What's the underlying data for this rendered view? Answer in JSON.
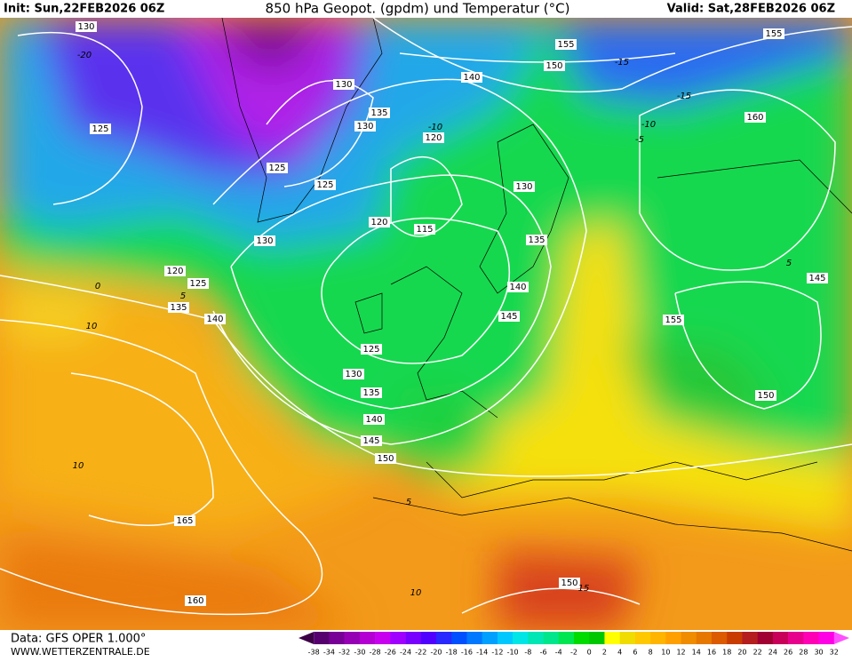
{
  "header": {
    "init": "Init: Sun,22FEB2026 06Z",
    "title": "850 hPa Geopot. (gpdm) und Temperatur (°C)",
    "valid": "Valid: Sat,28FEB2026 06Z"
  },
  "map": {
    "geopotential_labels": [
      "130",
      "125",
      "130",
      "135",
      "130",
      "125",
      "125",
      "120",
      "140",
      "155",
      "150",
      "155",
      "160",
      "130",
      "120",
      "115",
      "135",
      "130",
      "120",
      "125",
      "135",
      "140",
      "140",
      "145",
      "155",
      "145",
      "125",
      "130",
      "135",
      "140",
      "145",
      "150",
      "150",
      "165",
      "160",
      "150"
    ],
    "temperature_labels": [
      "-20",
      "-15",
      "-10",
      "-5",
      "0",
      "5",
      "10",
      "10",
      "5",
      "10",
      "15",
      "-15",
      "-10",
      "5"
    ]
  },
  "footer": {
    "source": "Data: GFS OPER 1.000°",
    "site": "WWW.WETTERZENTRALE.DE"
  },
  "colorbar": {
    "labels": [
      "-38",
      "-34",
      "-32",
      "-30",
      "-28",
      "-26",
      "-24",
      "-22",
      "-20",
      "-18",
      "-16",
      "-14",
      "-12",
      "-10",
      "-8",
      "-6",
      "-4",
      "-2",
      "0",
      "2",
      "4",
      "6",
      "8",
      "10",
      "12",
      "14",
      "16",
      "18",
      "20",
      "22",
      "24",
      "26",
      "28",
      "30",
      "32"
    ],
    "colors": [
      "#3c0046",
      "#55006e",
      "#780096",
      "#9600b4",
      "#b400d2",
      "#c800f0",
      "#a000ff",
      "#7800ff",
      "#5000ff",
      "#2828ff",
      "#0050ff",
      "#0078ff",
      "#00a0ff",
      "#00c8ff",
      "#00e6e6",
      "#00e6b4",
      "#00e68c",
      "#00e650",
      "#00dc00",
      "#00c800",
      "#ffff00",
      "#f0dc00",
      "#ffc800",
      "#ffb400",
      "#ffa000",
      "#f08c00",
      "#e67800",
      "#dc5a00",
      "#c83c00",
      "#b41e1e",
      "#a00032",
      "#c8005a",
      "#e6008c",
      "#ff00b4",
      "#ff00e6",
      "#ff50ff"
    ]
  }
}
